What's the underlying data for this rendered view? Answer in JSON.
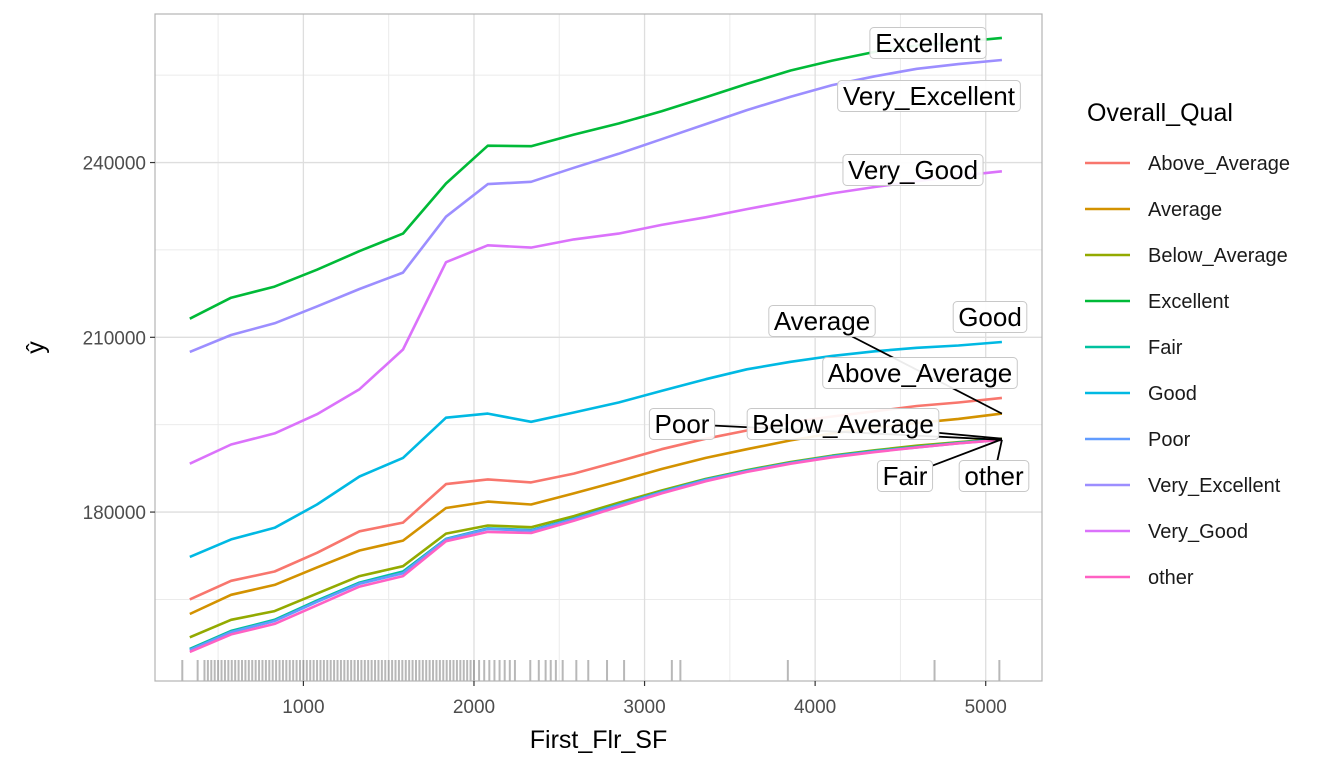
{
  "chart_data": {
    "type": "line",
    "xlabel": "First_Flr_SF",
    "ylabel": "ŷ",
    "xlim": [
      130,
      5330
    ],
    "ylim": [
      151000,
      265500
    ],
    "x_ticks": [
      1000,
      2000,
      3000,
      4000,
      5000
    ],
    "y_ticks": [
      180000,
      210000,
      240000
    ],
    "x_tick_labels": [
      "1000",
      "2000",
      "3000",
      "4000",
      "5000"
    ],
    "y_tick_labels": [
      "180000",
      "210000",
      "240000"
    ],
    "grid": true,
    "legend": {
      "title": "Overall_Qual",
      "position": "right"
    },
    "x": [
      334,
      576,
      831,
      1080,
      1329,
      1584,
      1836,
      2081,
      2335,
      2585,
      2848,
      3100,
      3359,
      3600,
      3856,
      4100,
      4349,
      4596,
      4840,
      5095
    ],
    "series": [
      {
        "name": "Above_Average",
        "color": "#F8766D",
        "values": [
          165000,
          168200,
          169800,
          173000,
          176700,
          178200,
          184800,
          185600,
          185100,
          186600,
          188700,
          190800,
          192600,
          194000,
          195400,
          196400,
          197300,
          198200,
          198800,
          199600
        ]
      },
      {
        "name": "Average",
        "color": "#D39200",
        "values": [
          162500,
          165800,
          167500,
          170500,
          173400,
          175100,
          180700,
          181800,
          181300,
          183200,
          185300,
          187400,
          189300,
          190800,
          192300,
          193500,
          194500,
          195300,
          196000,
          196900
        ]
      },
      {
        "name": "Below_Average",
        "color": "#93AA00",
        "values": [
          158500,
          161500,
          163000,
          166000,
          169000,
          170700,
          176300,
          177700,
          177400,
          179300,
          181600,
          183700,
          185700,
          187200,
          188600,
          189700,
          190600,
          191400,
          192000,
          192600
        ]
      },
      {
        "name": "Excellent",
        "color": "#00BA38",
        "values": [
          213200,
          216800,
          218700,
          221600,
          224800,
          227800,
          236400,
          242900,
          242800,
          244800,
          246700,
          248800,
          251200,
          253500,
          255800,
          257500,
          259000,
          260100,
          260700,
          261400
        ]
      },
      {
        "name": "Fair",
        "color": "#00C19F",
        "values": [
          156500,
          159600,
          161500,
          164800,
          167900,
          169800,
          175400,
          177200,
          176900,
          178900,
          181300,
          183500,
          185600,
          187100,
          188500,
          189600,
          190500,
          191200,
          191900,
          192500
        ]
      },
      {
        "name": "Good",
        "color": "#00B9E3",
        "values": [
          172300,
          175300,
          177300,
          181300,
          186100,
          189300,
          196200,
          196900,
          195500,
          197100,
          198800,
          200800,
          202800,
          204500,
          205800,
          206800,
          207600,
          208200,
          208600,
          209200
        ]
      },
      {
        "name": "Poor",
        "color": "#619CFF",
        "values": [
          156300,
          159400,
          161300,
          164600,
          167700,
          169500,
          175300,
          177100,
          176800,
          178800,
          181200,
          183400,
          185500,
          187000,
          188400,
          189500,
          190400,
          191100,
          191800,
          192400
        ]
      },
      {
        "name": "Very_Excellent",
        "color": "#9C8EFF",
        "values": [
          207500,
          210400,
          212400,
          215300,
          218300,
          221100,
          230700,
          236300,
          236700,
          239100,
          241500,
          244000,
          246600,
          249000,
          251300,
          253300,
          254800,
          256100,
          256900,
          257600
        ]
      },
      {
        "name": "Very_Good",
        "color": "#DB72FB",
        "values": [
          188300,
          191600,
          193500,
          196800,
          201100,
          207900,
          222900,
          225800,
          225400,
          226800,
          227800,
          229300,
          230600,
          232000,
          233400,
          234700,
          235800,
          236800,
          237700,
          238500
        ]
      },
      {
        "name": "other",
        "color": "#FF61C3",
        "values": [
          156000,
          159000,
          160800,
          164000,
          167200,
          169000,
          175000,
          176600,
          176400,
          178500,
          180900,
          183200,
          185300,
          186900,
          188300,
          189400,
          190300,
          191100,
          191800,
          192400
        ]
      }
    ],
    "end_labels": [
      "Excellent",
      "Very_Excellent",
      "Very_Good",
      "Average",
      "Good",
      "Above_Average",
      "Poor",
      "Below_Average",
      "Fair",
      "other"
    ],
    "rug": [
      290,
      380,
      420,
      440,
      460,
      480,
      500,
      520,
      540,
      560,
      580,
      600,
      620,
      640,
      660,
      680,
      700,
      720,
      740,
      760,
      780,
      800,
      820,
      840,
      860,
      880,
      900,
      920,
      940,
      960,
      980,
      1000,
      1020,
      1040,
      1060,
      1080,
      1100,
      1120,
      1140,
      1160,
      1180,
      1200,
      1220,
      1240,
      1260,
      1280,
      1300,
      1320,
      1340,
      1360,
      1380,
      1400,
      1420,
      1440,
      1460,
      1480,
      1500,
      1520,
      1540,
      1560,
      1580,
      1600,
      1620,
      1640,
      1660,
      1680,
      1700,
      1720,
      1740,
      1760,
      1780,
      1800,
      1820,
      1840,
      1860,
      1880,
      1900,
      1920,
      1940,
      1960,
      1980,
      2000,
      2030,
      2060,
      2090,
      2120,
      2150,
      2180,
      2210,
      2240,
      2330,
      2380,
      2420,
      2450,
      2480,
      2520,
      2600,
      2670,
      2780,
      2880,
      3160,
      3210,
      3840,
      4700,
      5080
    ]
  }
}
